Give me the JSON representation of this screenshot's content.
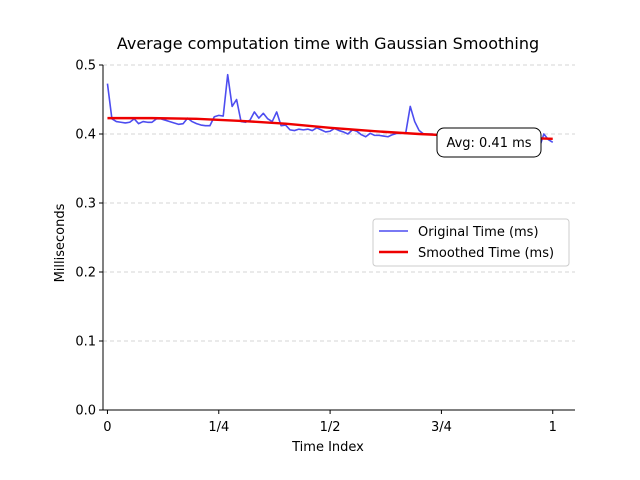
{
  "chart_data": {
    "type": "line",
    "title": "Average computation time with Gaussian Smoothing",
    "xlabel": "Time Index",
    "ylabel": "Milliseconds",
    "xlim": [
      -0.01,
      1.05
    ],
    "ylim": [
      0,
      0.5
    ],
    "x_ticks": [
      0,
      0.25,
      0.5,
      0.75,
      1
    ],
    "x_tick_labels": [
      "0",
      "1/4",
      "1/2",
      "3/4",
      "1"
    ],
    "y_ticks": [
      0,
      0.1,
      0.2,
      0.3,
      0.4,
      0.5
    ],
    "y_tick_labels": [
      "0.0",
      "0.1",
      "0.2",
      "0.3",
      "0.4",
      "0.5"
    ],
    "grid": "horizontal-dashed",
    "legend_position": "center-right",
    "annotation": "Avg: 0.41 ms",
    "series": [
      {
        "name": "Original Time (ms)",
        "color": "#4d4df0",
        "x": [
          0,
          0.01,
          0.02,
          0.03,
          0.04,
          0.05,
          0.06,
          0.07,
          0.08,
          0.09,
          0.1,
          0.11,
          0.12,
          0.13,
          0.14,
          0.15,
          0.16,
          0.17,
          0.18,
          0.19,
          0.2,
          0.21,
          0.22,
          0.23,
          0.24,
          0.25,
          0.26,
          0.27,
          0.28,
          0.29,
          0.3,
          0.31,
          0.32,
          0.33,
          0.34,
          0.35,
          0.36,
          0.37,
          0.38,
          0.39,
          0.4,
          0.41,
          0.42,
          0.43,
          0.44,
          0.45,
          0.46,
          0.47,
          0.48,
          0.49,
          0.5,
          0.51,
          0.52,
          0.53,
          0.54,
          0.55,
          0.56,
          0.57,
          0.58,
          0.59,
          0.6,
          0.61,
          0.62,
          0.63,
          0.64,
          0.65,
          0.66,
          0.67,
          0.68,
          0.69,
          0.7,
          0.71,
          0.72,
          0.73,
          0.74,
          0.75,
          0.76,
          0.77,
          0.78,
          0.79,
          0.8,
          0.81,
          0.82,
          0.83,
          0.84,
          0.85,
          0.86,
          0.87,
          0.88,
          0.89,
          0.9,
          0.91,
          0.92,
          0.93,
          0.94,
          0.95,
          0.96,
          0.97,
          0.98,
          0.99,
          1.0
        ],
        "values": [
          0.473,
          0.422,
          0.418,
          0.417,
          0.416,
          0.417,
          0.422,
          0.415,
          0.418,
          0.417,
          0.417,
          0.422,
          0.422,
          0.42,
          0.418,
          0.416,
          0.414,
          0.415,
          0.423,
          0.418,
          0.415,
          0.413,
          0.412,
          0.412,
          0.425,
          0.427,
          0.426,
          0.486,
          0.44,
          0.45,
          0.418,
          0.417,
          0.42,
          0.432,
          0.423,
          0.43,
          0.422,
          0.418,
          0.432,
          0.412,
          0.413,
          0.406,
          0.405,
          0.407,
          0.406,
          0.407,
          0.405,
          0.409,
          0.406,
          0.403,
          0.404,
          0.408,
          0.405,
          0.403,
          0.4,
          0.406,
          0.404,
          0.399,
          0.396,
          0.401,
          0.398,
          0.398,
          0.397,
          0.396,
          0.399,
          0.401,
          0.401,
          0.402,
          0.44,
          0.418,
          0.405,
          0.4,
          0.4,
          0.4,
          0.398,
          0.394,
          0.394,
          0.395,
          0.396,
          0.397,
          0.398,
          0.393,
          0.392,
          0.394,
          0.393,
          0.393,
          0.394,
          0.392,
          0.392,
          0.391,
          0.39,
          0.389,
          0.388,
          0.391,
          0.393,
          0.391,
          0.393,
          0.38,
          0.4,
          0.392,
          0.388
        ]
      },
      {
        "name": "Smoothed Time (ms)",
        "color": "#ee0000",
        "x": [
          0,
          0.1,
          0.2,
          0.3,
          0.4,
          0.5,
          0.6,
          0.7,
          0.8,
          0.9,
          1.0
        ],
        "values": [
          0.423,
          0.423,
          0.422,
          0.419,
          0.415,
          0.409,
          0.404,
          0.4,
          0.397,
          0.395,
          0.393
        ]
      }
    ]
  }
}
